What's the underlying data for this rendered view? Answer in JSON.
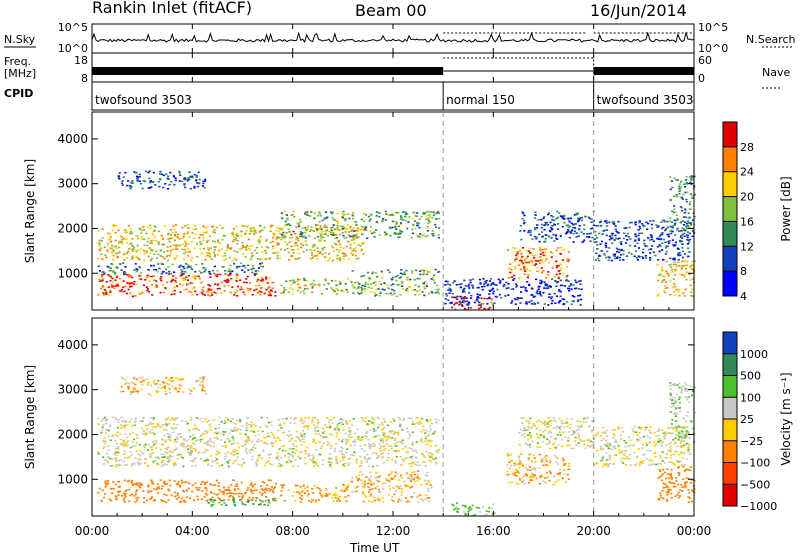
{
  "header": {
    "station": "Rankin Inlet (fitACF)",
    "beam": "Beam 00",
    "date": "16/Jun/2014"
  },
  "info_panels": {
    "nsky": {
      "label": "N.Sky",
      "right_label": "N.Search",
      "left_ticks": [
        "10^5",
        "10^0"
      ],
      "right_ticks": [
        "10^5",
        "10^0"
      ]
    },
    "freq": {
      "label_top": "Freq.",
      "label_unit": "[MHz]",
      "right_label": "Nave",
      "left_ticks": [
        "18",
        "8"
      ],
      "right_ticks": [
        "60",
        "0"
      ]
    },
    "cpid": {
      "label": "CPID",
      "segments": [
        {
          "start": 0,
          "end": 14,
          "name": "twofsound 3503"
        },
        {
          "start": 14,
          "end": 20,
          "name": "normal 150"
        },
        {
          "start": 20,
          "end": 24,
          "name": "twofsound 3503"
        }
      ]
    }
  },
  "chart_data": [
    {
      "type": "heatmap",
      "panel": "power",
      "ylabel": "Slant Range [km]",
      "colorbar_label": "Power [dB]",
      "colorbar_ticks": [
        "28",
        "24",
        "20",
        "16",
        "12",
        "8",
        "4"
      ],
      "colorbar_colors": [
        "#e00000",
        "#ff8000",
        "#ffcc00",
        "#80c040",
        "#2e8b57",
        "#1040c0",
        "#0000ff"
      ],
      "xlim": [
        0,
        24
      ],
      "ylim": [
        180,
        4600
      ],
      "yticks": [
        "1000",
        "2000",
        "3000",
        "4000"
      ],
      "xticks": [
        "00:00",
        "04:00",
        "08:00",
        "12:00",
        "16:00",
        "20:00",
        "00:00"
      ],
      "mode_boundaries": [
        14,
        20
      ],
      "echo_regions": [
        {
          "t0": 0.2,
          "t1": 7.3,
          "r0": 500,
          "r1": 1000,
          "level": 26
        },
        {
          "t0": 7.5,
          "t1": 10.2,
          "r0": 550,
          "r1": 900,
          "level": 18
        },
        {
          "t0": 10.3,
          "t1": 13.8,
          "r0": 500,
          "r1": 1100,
          "level": 14
        },
        {
          "t0": 0.2,
          "t1": 6.8,
          "r0": 1000,
          "r1": 1250,
          "level": 10
        },
        {
          "t0": 0.2,
          "t1": 10.8,
          "r0": 1300,
          "r1": 2100,
          "level": 20
        },
        {
          "t0": 7.5,
          "t1": 13.8,
          "r0": 1800,
          "r1": 2400,
          "level": 14
        },
        {
          "t0": 1.0,
          "t1": 4.5,
          "r0": 2900,
          "r1": 3300,
          "level": 8
        },
        {
          "t0": 14.3,
          "t1": 16.0,
          "r0": 200,
          "r1": 500,
          "level": 28
        },
        {
          "t0": 14.0,
          "t1": 19.5,
          "r0": 300,
          "r1": 900,
          "level": 6
        },
        {
          "t0": 16.5,
          "t1": 19.0,
          "r0": 900,
          "r1": 1600,
          "level": 24
        },
        {
          "t0": 17.0,
          "t1": 20.0,
          "r0": 1700,
          "r1": 2400,
          "level": 8
        },
        {
          "t0": 20.0,
          "t1": 23.8,
          "r0": 1300,
          "r1": 2200,
          "level": 8
        },
        {
          "t0": 22.5,
          "t1": 24.0,
          "r0": 500,
          "r1": 1300,
          "level": 20
        },
        {
          "t0": 23.0,
          "t1": 24.0,
          "r0": 1800,
          "r1": 3200,
          "level": 12
        }
      ]
    },
    {
      "type": "heatmap",
      "panel": "velocity",
      "ylabel": "Slant Range [km]",
      "xlabel": "Time UT",
      "colorbar_label": "Velocity [m s⁻¹]",
      "colorbar_ticks": [
        "1000",
        "500",
        "100",
        "25",
        "−25",
        "−100",
        "−500",
        "−1000"
      ],
      "colorbar_colors": [
        "#1040c0",
        "#2e8b57",
        "#50c030",
        "#c8c8c8",
        "#ffcc00",
        "#ff8000",
        "#ff4000",
        "#e00000"
      ],
      "xlim": [
        0,
        24
      ],
      "ylim": [
        180,
        4600
      ],
      "yticks": [
        "1000",
        "2000",
        "3000",
        "4000"
      ],
      "xticks": [
        "00:00",
        "04:00",
        "08:00",
        "12:00",
        "16:00",
        "20:00",
        "00:00"
      ],
      "mode_boundaries": [
        14,
        20
      ],
      "echo_regions": [
        {
          "t0": 0.2,
          "t1": 7.3,
          "r0": 500,
          "r1": 1000,
          "level": -200
        },
        {
          "t0": 4.5,
          "t1": 7.3,
          "r0": 400,
          "r1": 600,
          "level": 200
        },
        {
          "t0": 7.5,
          "t1": 10.2,
          "r0": 500,
          "r1": 900,
          "level": -100
        },
        {
          "t0": 10.3,
          "t1": 13.5,
          "r0": 500,
          "r1": 1200,
          "level": -60
        },
        {
          "t0": 0.2,
          "t1": 13.8,
          "r0": 1300,
          "r1": 2400,
          "level": 0
        },
        {
          "t0": 1.0,
          "t1": 4.5,
          "r0": 2900,
          "r1": 3300,
          "level": -60
        },
        {
          "t0": 14.3,
          "t1": 16.0,
          "r0": 200,
          "r1": 500,
          "level": 80
        },
        {
          "t0": 16.5,
          "t1": 19.0,
          "r0": 900,
          "r1": 1600,
          "level": -60
        },
        {
          "t0": 17.0,
          "t1": 20.0,
          "r0": 1700,
          "r1": 2400,
          "level": 0
        },
        {
          "t0": 20.0,
          "t1": 23.8,
          "r0": 1300,
          "r1": 2200,
          "level": 0
        },
        {
          "t0": 22.5,
          "t1": 24.0,
          "r0": 500,
          "r1": 1300,
          "level": -200
        },
        {
          "t0": 23.0,
          "t1": 24.0,
          "r0": 1800,
          "r1": 3200,
          "level": 60
        }
      ]
    }
  ]
}
